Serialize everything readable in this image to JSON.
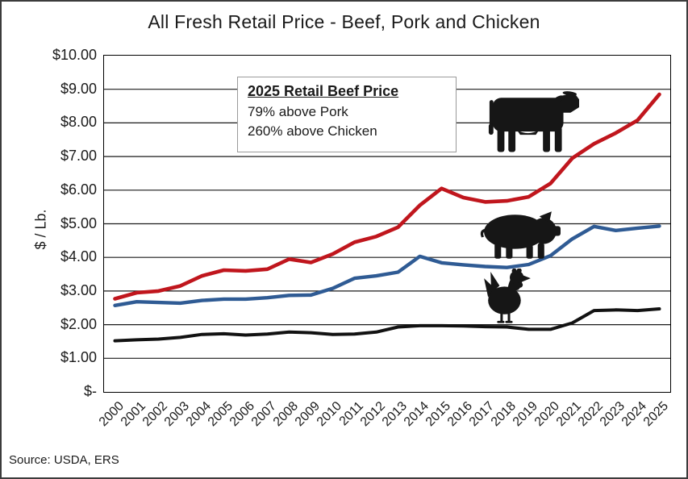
{
  "title": "All Fresh Retail Price - Beef, Pork and Chicken",
  "source_note": "Source: USDA, ERS",
  "annotation": {
    "heading": "2025 Retail Beef Price",
    "line1": "79% above Pork",
    "line2": "260% above Chicken"
  },
  "icons": {
    "beef": "cow-icon",
    "pork": "pig-icon",
    "chicken": "chicken-icon"
  },
  "colors": {
    "beef": "#C0161D",
    "pork": "#2F5B94",
    "chicken": "#121212",
    "grid": "#1a1a1a",
    "plot_border": "#000000"
  },
  "chart_data": {
    "type": "line",
    "title": "All Fresh Retail Price - Beef, Pork and Chicken",
    "xlabel": "",
    "ylabel": "$ / Lb.",
    "ylim": [
      0,
      10
    ],
    "ytick_step": 1,
    "ytick_labels": [
      "$-",
      "$1.00",
      "$2.00",
      "$3.00",
      "$4.00",
      "$5.00",
      "$6.00",
      "$7.00",
      "$8.00",
      "$9.00",
      "$10.00"
    ],
    "grid": true,
    "legend_position": "none",
    "x": [
      2000,
      2001,
      2002,
      2003,
      2004,
      2005,
      2006,
      2007,
      2008,
      2009,
      2010,
      2011,
      2012,
      2013,
      2014,
      2015,
      2016,
      2017,
      2018,
      2019,
      2020,
      2021,
      2022,
      2023,
      2024,
      2025
    ],
    "series": [
      {
        "name": "Beef",
        "color": "#C0161D",
        "stroke_width": 4.6,
        "values": [
          2.77,
          2.95,
          3.0,
          3.15,
          3.45,
          3.62,
          3.6,
          3.65,
          3.95,
          3.85,
          4.1,
          4.45,
          4.62,
          4.9,
          5.55,
          6.05,
          5.78,
          5.65,
          5.68,
          5.8,
          6.2,
          6.95,
          7.38,
          7.7,
          8.08,
          8.85
        ]
      },
      {
        "name": "Pork",
        "color": "#2F5B94",
        "stroke_width": 4.4,
        "values": [
          2.57,
          2.68,
          2.66,
          2.64,
          2.72,
          2.76,
          2.76,
          2.8,
          2.87,
          2.88,
          3.08,
          3.38,
          3.45,
          3.56,
          4.03,
          3.84,
          3.78,
          3.73,
          3.7,
          3.79,
          4.05,
          4.55,
          4.92,
          4.8,
          4.87,
          4.93
        ]
      },
      {
        "name": "Chicken",
        "color": "#121212",
        "stroke_width": 4.0,
        "values": [
          1.52,
          1.55,
          1.57,
          1.62,
          1.71,
          1.73,
          1.69,
          1.72,
          1.78,
          1.76,
          1.71,
          1.72,
          1.78,
          1.93,
          1.97,
          1.97,
          1.96,
          1.94,
          1.93,
          1.86,
          1.86,
          2.05,
          2.42,
          2.44,
          2.42,
          2.47
        ]
      }
    ]
  }
}
